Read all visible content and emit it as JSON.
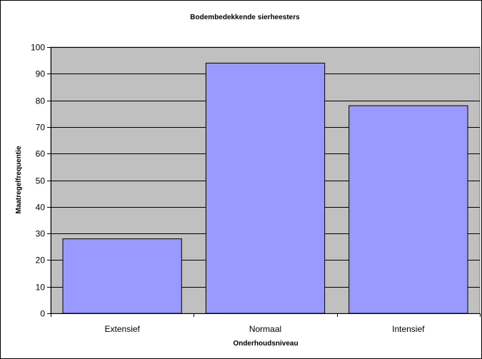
{
  "chart_data": {
    "type": "bar",
    "title": "Bodembedekkende sierheesters",
    "xlabel": "Onderhoudsniveau",
    "ylabel": "Maatregelfrequentie",
    "categories": [
      "Extensief",
      "Normaal",
      "Intensief"
    ],
    "values": [
      28,
      94,
      78
    ],
    "ylim": [
      0,
      100
    ],
    "yticks": [
      "0",
      "10",
      "20",
      "30",
      "40",
      "50",
      "60",
      "70",
      "80",
      "90",
      "100"
    ],
    "grid": true,
    "legend": "none",
    "colors": {
      "plot_background": "#c0c0c0",
      "bar_fill": "#9999ff",
      "bar_stroke": "#000000",
      "gridline": "#000000"
    }
  }
}
